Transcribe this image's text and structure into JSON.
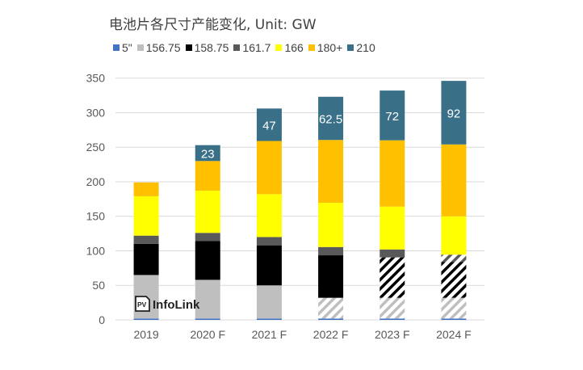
{
  "chart_data": {
    "type": "bar",
    "stacked": true,
    "title": "电池片各尺寸产能变化, Unit: GW",
    "xlabel": "",
    "ylabel": "",
    "ylim": [
      0,
      350
    ],
    "yticks": [
      0,
      50,
      100,
      150,
      200,
      250,
      300,
      350
    ],
    "grid": true,
    "legend_position": "top",
    "categories": [
      "2019",
      "2020 F",
      "2021 F",
      "2022 F",
      "2023 F",
      "2024 F"
    ],
    "series": [
      {
        "name": "5\"",
        "color": "#4472C4",
        "values": [
          2,
          2,
          2,
          2,
          2,
          2
        ],
        "hatched": [
          false,
          false,
          false,
          false,
          false,
          false
        ]
      },
      {
        "name": "156.75",
        "color": "#BFBFBF",
        "values": [
          63,
          56,
          48,
          30,
          30,
          30
        ],
        "hatched": [
          false,
          false,
          false,
          true,
          true,
          true
        ]
      },
      {
        "name": "158.75",
        "color": "#000000",
        "values": [
          45,
          56,
          58,
          61.5,
          58.5,
          52
        ],
        "hatched": [
          false,
          false,
          false,
          false,
          true,
          true
        ]
      },
      {
        "name": "161.7",
        "color": "#595959",
        "values": [
          12,
          12,
          12,
          12,
          11.5,
          10.5
        ],
        "hatched": [
          false,
          false,
          false,
          false,
          false,
          true
        ]
      },
      {
        "name": "166",
        "color": "#FFFF00",
        "values": [
          57,
          61,
          62,
          64,
          62,
          55.5
        ],
        "hatched": [
          false,
          false,
          false,
          false,
          false,
          false
        ]
      },
      {
        "name": "180+",
        "color": "#FFC000",
        "values": [
          20,
          43,
          77,
          91,
          96,
          104
        ],
        "hatched": [
          false,
          false,
          false,
          false,
          false,
          false
        ]
      },
      {
        "name": "210",
        "color": "#3A7087",
        "values": [
          0,
          23,
          47,
          62.5,
          72,
          92
        ],
        "hatched": [
          false,
          false,
          false,
          false,
          false,
          false
        ]
      }
    ],
    "data_labels": {
      "series": "210",
      "labels": [
        "",
        "23",
        "47",
        "62.5",
        "72",
        "92"
      ]
    }
  },
  "watermark": "PV InfoLink"
}
